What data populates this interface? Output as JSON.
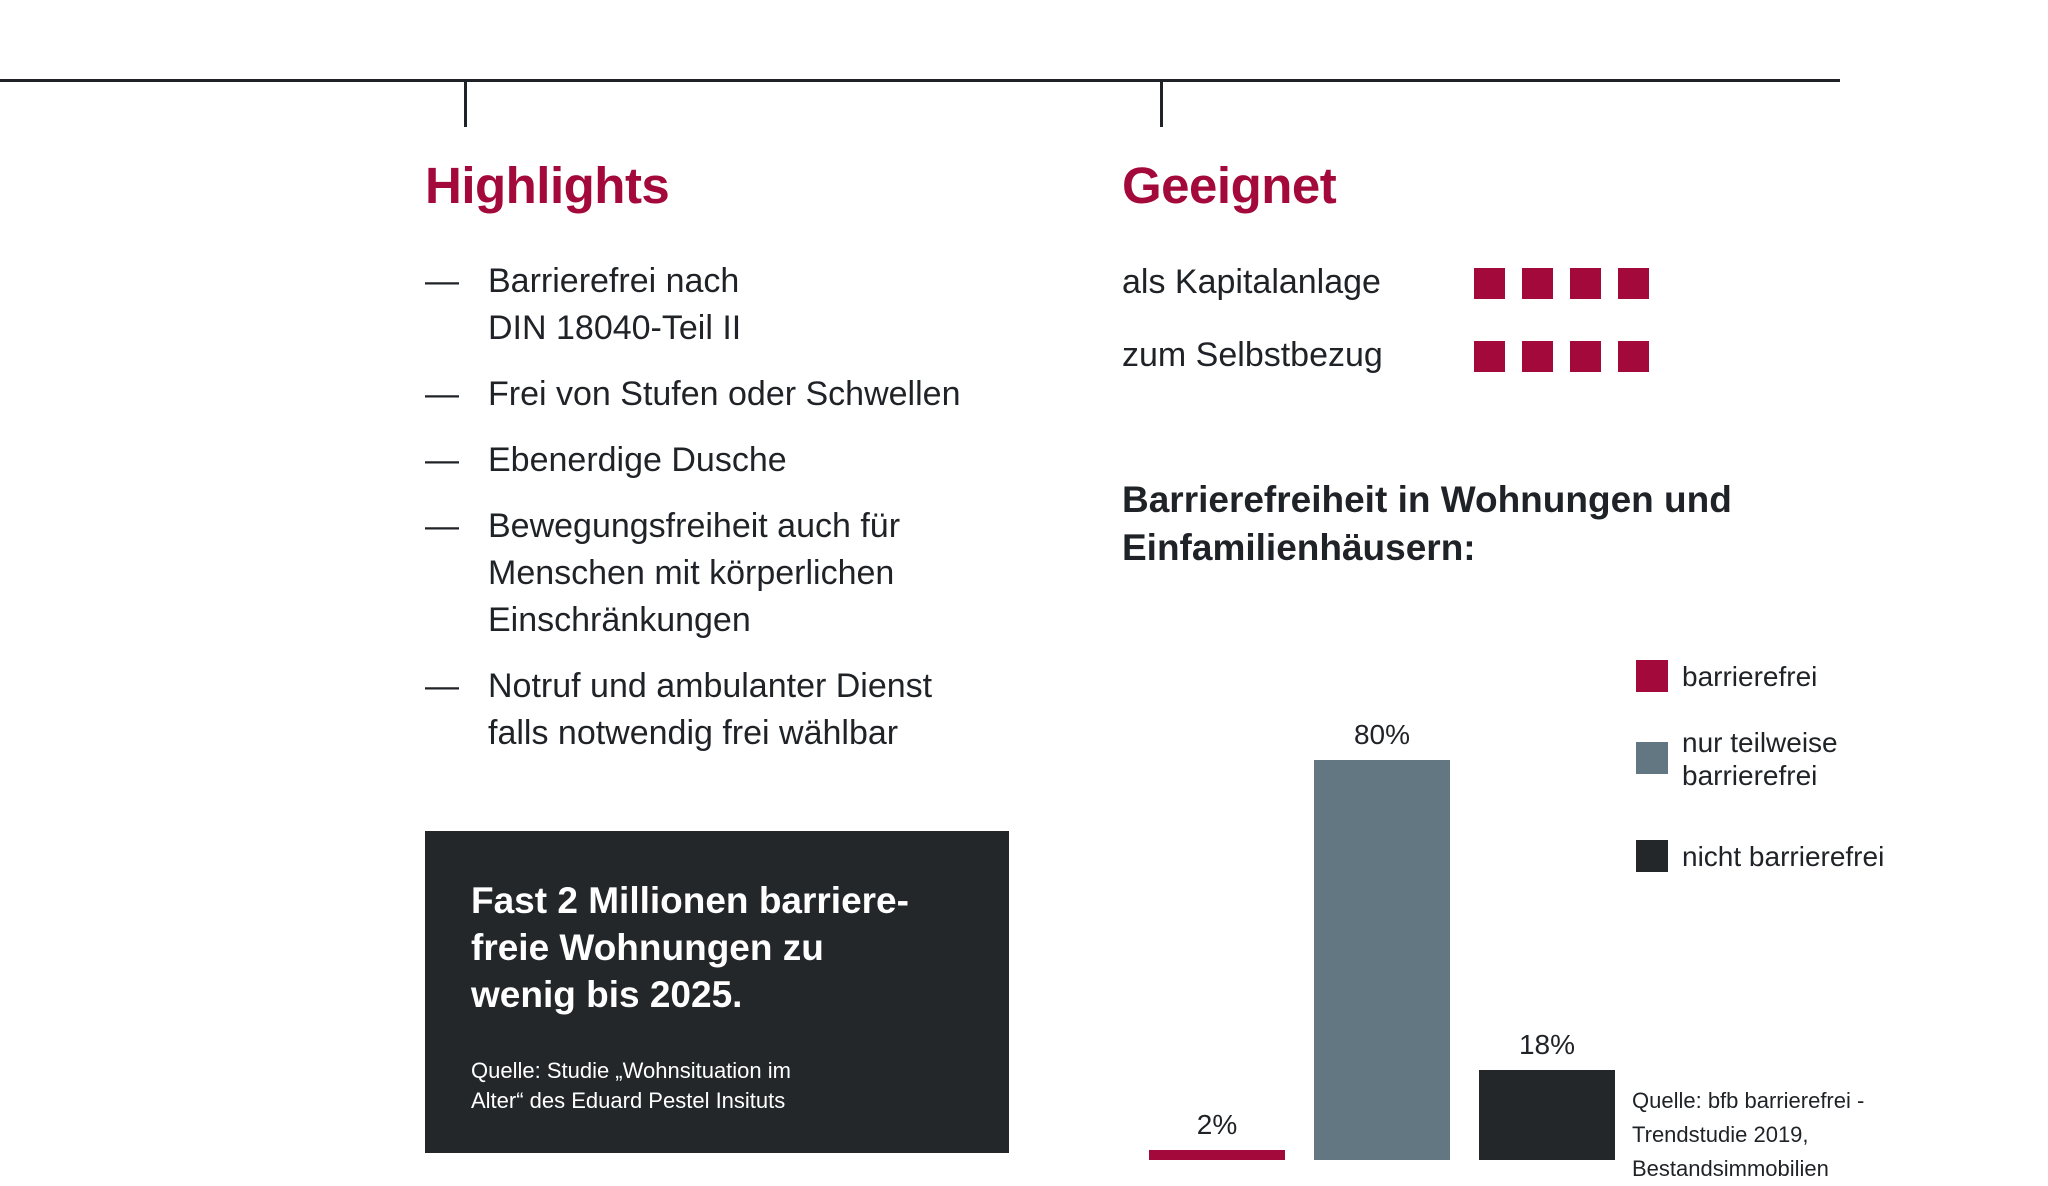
{
  "highlights": {
    "title": "Highlights",
    "dash": "—",
    "items": [
      {
        "lines": [
          "Barrierefrei nach",
          "DIN 18040-Teil II"
        ]
      },
      {
        "lines": [
          "Frei von Stufen oder Schwellen"
        ]
      },
      {
        "lines": [
          "Ebenerdige Dusche"
        ]
      },
      {
        "lines": [
          "Bewegungsfreiheit auch für",
          "Menschen mit körperlichen",
          "Einschränkungen"
        ]
      },
      {
        "lines": [
          "Notruf und ambulanter Dienst",
          "falls notwendig frei wählbar"
        ]
      }
    ]
  },
  "callout": {
    "headline_lines": [
      "Fast 2 Millionen barriere-",
      "freie Wohnungen zu",
      "wenig bis 2025."
    ],
    "source_lines": [
      "Quelle: Studie „Wohnsituation im",
      "Alter“ des Eduard Pestel Insituts"
    ]
  },
  "suitability": {
    "title": "Geeignet",
    "rows": [
      {
        "label": "als Kapitalanlage",
        "rating": 4,
        "max": 4
      },
      {
        "label": "zum Selbstbezug",
        "rating": 4,
        "max": 4
      }
    ]
  },
  "colors": {
    "accent": "#a3093b",
    "dark": "#23272a",
    "slate": "#637783",
    "text": "#1f2226"
  },
  "chart_data": {
    "type": "bar",
    "title_lines": [
      "Barrierefreiheit in Wohnungen und",
      "Einfamilienhäusern:"
    ],
    "categories": [
      "barrierefrei",
      "nur teilweise barrierefrei",
      "nicht barrierefrei"
    ],
    "values": [
      2,
      80,
      18
    ],
    "value_labels": [
      "2%",
      "80%",
      "18%"
    ],
    "colors": [
      "#a3093b",
      "#637783",
      "#23272a"
    ],
    "unit": "%",
    "ylim": [
      0,
      80
    ],
    "grid": false,
    "legend_position": "right",
    "legend": [
      {
        "lines": [
          "barrierefrei"
        ],
        "color": "#a3093b"
      },
      {
        "lines": [
          "nur teilweise",
          "barrierefrei"
        ],
        "color": "#637783"
      },
      {
        "lines": [
          "nicht barrierefrei"
        ],
        "color": "#23272a"
      }
    ],
    "source_lines": [
      "Quelle: bfb barrierefrei -",
      "Trendstudie 2019,",
      "Bestandsimmobilien"
    ]
  }
}
